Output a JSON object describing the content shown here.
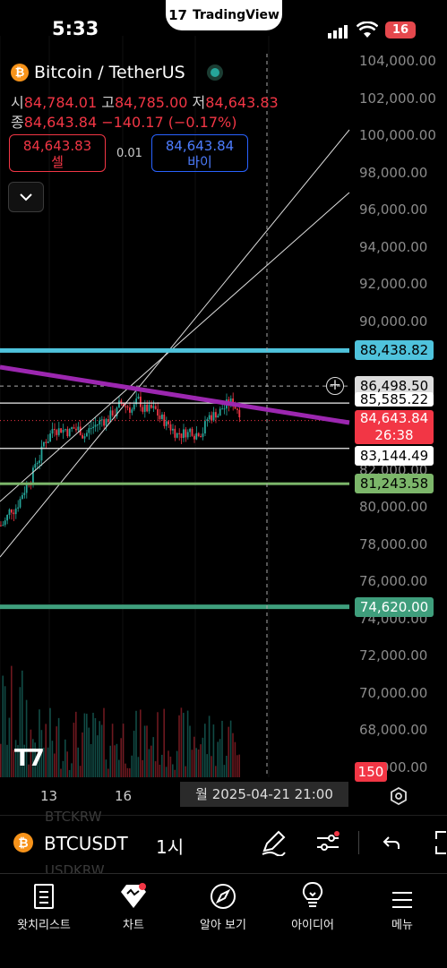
{
  "status": {
    "time": "5:33",
    "battery": "16",
    "app_pill": "TradingView"
  },
  "header": {
    "symbol_title": "Bitcoin / TetherUS",
    "open_label": "시",
    "open": "84,784.01",
    "high_label": "고",
    "high": "84,785.00",
    "low_label": "저",
    "low": "84,643.83",
    "close_label": "종",
    "close": "84,643.84",
    "change": "−140.17 (−0.17%)"
  },
  "trade": {
    "sell_price": "84,643.83",
    "sell_label": "셀",
    "spread": "0.01",
    "buy_price": "84,643.84",
    "buy_label": "바이"
  },
  "price_axis": {
    "ticks": [
      "104,000.00",
      "102,000.00",
      "100,000.00",
      "98,000.00",
      "96,000.00",
      "94,000.00",
      "92,000.00",
      "90,000.00",
      "86,000.00",
      "84,000.00",
      "82,000.00",
      "80,000.00",
      "78,000.00",
      "76,000.00",
      "74,000.00",
      "72,000.00",
      "70,000.00",
      "68,000.00",
      "66,000.00"
    ],
    "labels": {
      "level_cyan": "88,438.82",
      "crosshair": "86,498.50",
      "level_white_top": "85,585.22",
      "current_price": "84,643.84",
      "countdown": "26:38",
      "level_white_bottom": "83,144.49",
      "level_green": "81,243.58",
      "level_teal": "74,620.00",
      "volume": "150"
    }
  },
  "time_axis": {
    "ticks": [
      "13",
      "16"
    ],
    "crosshair_label": "월 2025-04-21   21:00"
  },
  "colors": {
    "up": "#26a69a",
    "down": "#f23645",
    "trendline": "#9c27b0",
    "cyan_level": "#4fc3dc",
    "green_level": "#7cb66a",
    "teal_level": "#3f9e7c"
  },
  "symbol_bar": {
    "symbol": "BTCUSDT",
    "timeframe": "1시",
    "ghost_above": "BTCKRW",
    "ghost_below": "USDKRW"
  },
  "tabs": [
    {
      "label": "왓치리스트",
      "icon": "watchlist-icon"
    },
    {
      "label": "차트",
      "icon": "chart-icon"
    },
    {
      "label": "알아 보기",
      "icon": "compass-icon"
    },
    {
      "label": "아이디어",
      "icon": "lightbulb-icon"
    },
    {
      "label": "메뉴",
      "icon": "menu-icon"
    }
  ]
}
